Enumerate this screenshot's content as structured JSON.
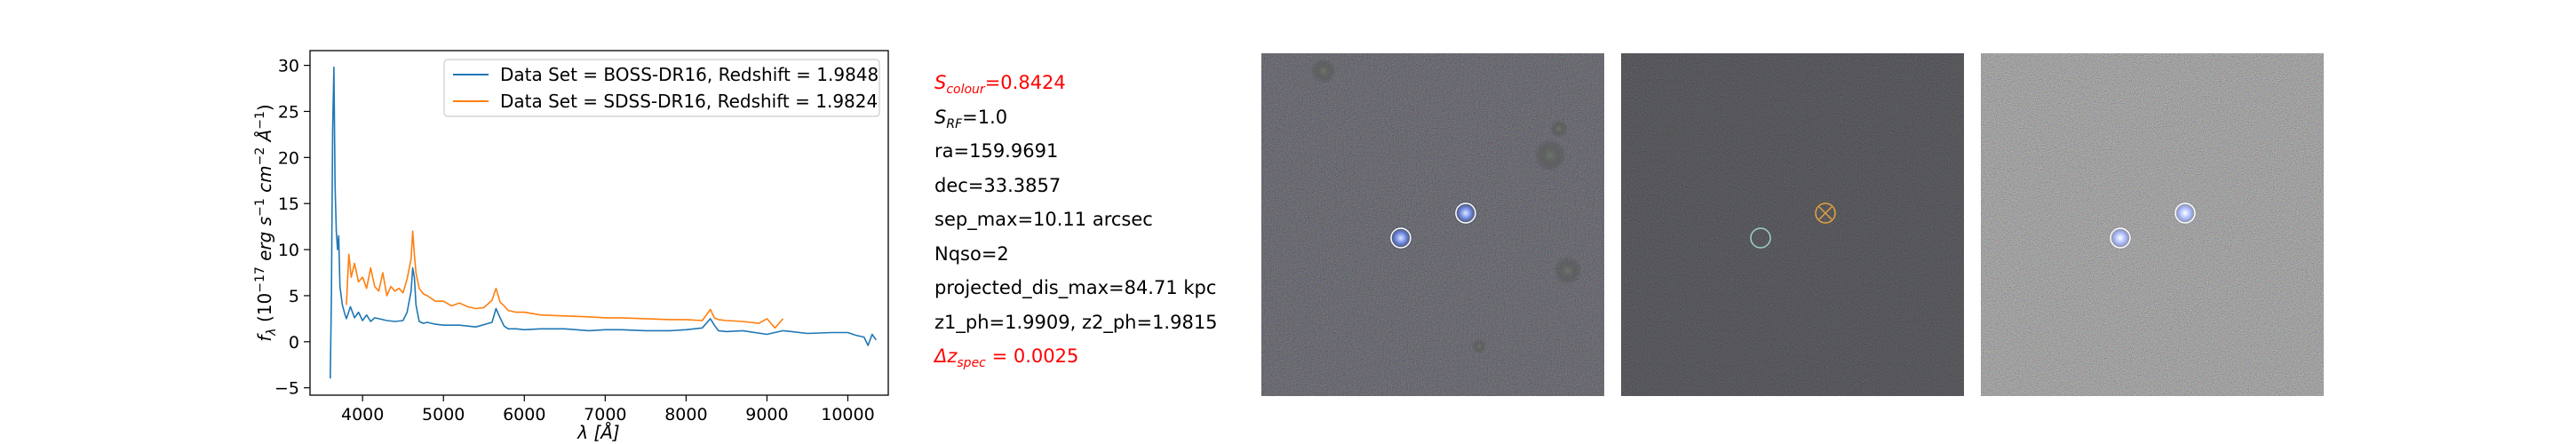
{
  "chart_data": {
    "type": "line",
    "xlabel": "λ [Å]",
    "ylabel": "f_λ (10^-17 erg s^-1 cm^-2 Å^-1)",
    "xlim": [
      3350,
      10500
    ],
    "ylim": [
      -5.8,
      31.6
    ],
    "xticks": [
      4000,
      5000,
      6000,
      7000,
      8000,
      9000,
      10000
    ],
    "yticks": [
      -5,
      0,
      5,
      10,
      15,
      20,
      25,
      30
    ],
    "legend_position": "top-right",
    "grid": false,
    "series": [
      {
        "name": "Data Set = BOSS-DR16, Redshift = 1.9848",
        "color": "#1f77b4",
        "x": [
          3600,
          3615,
          3630,
          3645,
          3660,
          3675,
          3690,
          3705,
          3720,
          3750,
          3780,
          3800,
          3850,
          3900,
          3950,
          4000,
          4050,
          4100,
          4150,
          4200,
          4300,
          4400,
          4500,
          4550,
          4600,
          4620,
          4640,
          4660,
          4700,
          4750,
          4800,
          4900,
          5000,
          5200,
          5400,
          5600,
          5650,
          5700,
          5750,
          5800,
          5900,
          6000,
          6200,
          6500,
          6800,
          7000,
          7200,
          7500,
          7800,
          8000,
          8200,
          8300,
          8350,
          8400,
          8500,
          8700,
          9000,
          9200,
          9500,
          9800,
          10000,
          10100,
          10200,
          10250,
          10300,
          10350
        ],
        "y": [
          -4.0,
          5.0,
          23.0,
          29.8,
          17.0,
          12.0,
          10.0,
          11.5,
          6.0,
          4.0,
          3.0,
          2.5,
          3.8,
          2.6,
          3.2,
          2.3,
          2.9,
          2.2,
          2.6,
          2.5,
          2.3,
          2.2,
          2.3,
          3.2,
          5.5,
          8.0,
          7.0,
          4.0,
          2.2,
          2.0,
          2.1,
          1.9,
          1.8,
          1.8,
          1.6,
          2.1,
          3.6,
          2.6,
          1.7,
          1.4,
          1.4,
          1.3,
          1.4,
          1.4,
          1.2,
          1.3,
          1.3,
          1.2,
          1.2,
          1.3,
          1.5,
          2.5,
          1.8,
          1.2,
          1.1,
          1.2,
          0.8,
          1.2,
          0.9,
          1.0,
          1.0,
          0.7,
          0.5,
          -0.4,
          0.8,
          0.2
        ]
      },
      {
        "name": "Data Set = SDSS-DR16, Redshift = 1.9824",
        "color": "#ff7f0e",
        "x": [
          3800,
          3830,
          3860,
          3900,
          3950,
          4000,
          4050,
          4100,
          4150,
          4200,
          4250,
          4300,
          4350,
          4400,
          4450,
          4500,
          4550,
          4600,
          4620,
          4640,
          4660,
          4700,
          4750,
          4800,
          4900,
          5000,
          5100,
          5200,
          5300,
          5400,
          5500,
          5600,
          5650,
          5700,
          5750,
          5800,
          5900,
          6000,
          6200,
          6500,
          6800,
          7000,
          7200,
          7500,
          7800,
          8000,
          8200,
          8300,
          8350,
          8400,
          8500,
          8700,
          8900,
          9000,
          9100,
          9200
        ],
        "y": [
          4.0,
          9.5,
          7.0,
          8.5,
          6.5,
          7.0,
          5.8,
          8.0,
          6.0,
          5.5,
          7.5,
          5.0,
          6.0,
          5.5,
          5.8,
          5.3,
          6.8,
          9.0,
          12.0,
          9.5,
          7.5,
          5.8,
          5.2,
          5.0,
          4.4,
          4.4,
          3.9,
          4.2,
          3.8,
          3.6,
          3.7,
          4.5,
          5.8,
          4.3,
          3.9,
          3.4,
          3.2,
          3.2,
          2.9,
          2.8,
          2.7,
          2.6,
          2.6,
          2.5,
          2.4,
          2.4,
          2.3,
          3.5,
          2.6,
          2.4,
          2.3,
          2.2,
          2.0,
          2.5,
          1.5,
          2.5
        ]
      }
    ]
  },
  "info": {
    "s_colour": "=0.8424",
    "s_colour_sym": "S",
    "s_colour_sub": "colour",
    "s_rf": "=1.0",
    "s_rf_sym": "S",
    "s_rf_sub": "RF",
    "ra": "ra=159.9691",
    "dec": "dec=33.3857",
    "sep_max": "sep_max=10.11 arcsec",
    "nqso": "Nqso=2",
    "projected_dis_max": "projected_dis_max=84.71 kpc",
    "z_ph": "z1_ph=1.9909, z2_ph=1.9815",
    "dz_spec_sym": "Δz",
    "dz_spec_sub": "spec",
    "dz_spec_val": " = 0.0025",
    "highlight_color": "#ff0000"
  },
  "panels": [
    {
      "name": "image-panel-1",
      "style": "dark-rgb",
      "marker_colors": [
        "#ffffff",
        "#ffffff"
      ]
    },
    {
      "name": "image-panel-2",
      "style": "dark-residual",
      "marker_colors": [
        "#9fd3c7",
        "#e8a33d"
      ]
    },
    {
      "name": "image-panel-3",
      "style": "noisy-rgb",
      "marker_colors": [
        "#ffffff",
        "#ffffff"
      ]
    }
  ]
}
